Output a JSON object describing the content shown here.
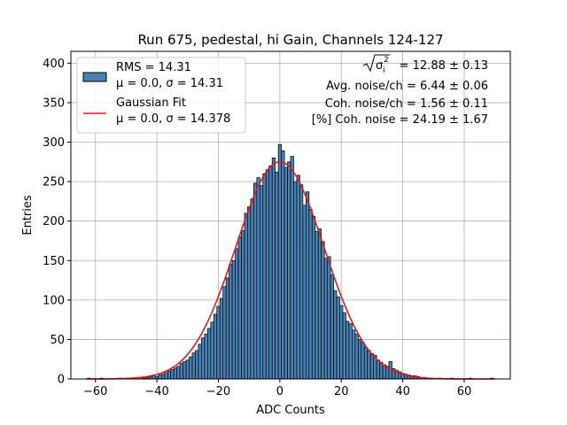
{
  "chart_data": {
    "type": "bar",
    "title": "Run 675, pedestal, hi Gain, Channels 124-127",
    "xlabel": "ADC Counts",
    "ylabel": "Entries",
    "xlim": [
      -68,
      75
    ],
    "ylim": [
      0,
      415
    ],
    "xticks": [
      -60,
      -40,
      -20,
      0,
      20,
      40,
      60
    ],
    "yticks": [
      0,
      50,
      100,
      150,
      200,
      250,
      300,
      350,
      400
    ],
    "grid": true,
    "legend_placement": "top-left",
    "bar_color": "#4682b4",
    "fit_color": "#e41a1c",
    "bins": [
      {
        "x": -62,
        "y": 1
      },
      {
        "x": -58,
        "y": 1
      },
      {
        "x": -52,
        "y": 1
      },
      {
        "x": -50,
        "y": 1
      },
      {
        "x": -47,
        "y": 1
      },
      {
        "x": -45,
        "y": 2
      },
      {
        "x": -44,
        "y": 1
      },
      {
        "x": -43,
        "y": 2
      },
      {
        "x": -42,
        "y": 3
      },
      {
        "x": -41,
        "y": 4
      },
      {
        "x": -40,
        "y": 3
      },
      {
        "x": -39,
        "y": 5
      },
      {
        "x": -38,
        "y": 6
      },
      {
        "x": -37,
        "y": 8
      },
      {
        "x": -36,
        "y": 10
      },
      {
        "x": -35,
        "y": 12
      },
      {
        "x": -34,
        "y": 14
      },
      {
        "x": -33,
        "y": 16
      },
      {
        "x": -32,
        "y": 20
      },
      {
        "x": -31,
        "y": 22
      },
      {
        "x": -30,
        "y": 24
      },
      {
        "x": -29,
        "y": 28
      },
      {
        "x": -28,
        "y": 33
      },
      {
        "x": -27,
        "y": 36
      },
      {
        "x": -26,
        "y": 44
      },
      {
        "x": -25,
        "y": 52
      },
      {
        "x": -24,
        "y": 57
      },
      {
        "x": -23,
        "y": 64
      },
      {
        "x": -22,
        "y": 72
      },
      {
        "x": -21,
        "y": 82
      },
      {
        "x": -20,
        "y": 92
      },
      {
        "x": -19,
        "y": 102
      },
      {
        "x": -18,
        "y": 117
      },
      {
        "x": -17,
        "y": 128
      },
      {
        "x": -16,
        "y": 145
      },
      {
        "x": -15,
        "y": 150
      },
      {
        "x": -14,
        "y": 165
      },
      {
        "x": -13,
        "y": 180
      },
      {
        "x": -12,
        "y": 188
      },
      {
        "x": -11,
        "y": 210
      },
      {
        "x": -10,
        "y": 218
      },
      {
        "x": -9,
        "y": 228
      },
      {
        "x": -8,
        "y": 248
      },
      {
        "x": -7,
        "y": 255
      },
      {
        "x": -6,
        "y": 245
      },
      {
        "x": -5,
        "y": 260
      },
      {
        "x": -4,
        "y": 265
      },
      {
        "x": -3,
        "y": 270
      },
      {
        "x": -2,
        "y": 280
      },
      {
        "x": -1,
        "y": 262
      },
      {
        "x": 0,
        "y": 297
      },
      {
        "x": 1,
        "y": 289
      },
      {
        "x": 2,
        "y": 268
      },
      {
        "x": 3,
        "y": 275
      },
      {
        "x": 4,
        "y": 282
      },
      {
        "x": 5,
        "y": 250
      },
      {
        "x": 6,
        "y": 258
      },
      {
        "x": 7,
        "y": 246
      },
      {
        "x": 8,
        "y": 220
      },
      {
        "x": 9,
        "y": 237
      },
      {
        "x": 10,
        "y": 215
      },
      {
        "x": 11,
        "y": 206
      },
      {
        "x": 12,
        "y": 187
      },
      {
        "x": 13,
        "y": 190
      },
      {
        "x": 14,
        "y": 174
      },
      {
        "x": 15,
        "y": 153
      },
      {
        "x": 16,
        "y": 155
      },
      {
        "x": 17,
        "y": 132
      },
      {
        "x": 18,
        "y": 112
      },
      {
        "x": 19,
        "y": 104
      },
      {
        "x": 20,
        "y": 93
      },
      {
        "x": 21,
        "y": 84
      },
      {
        "x": 22,
        "y": 73
      },
      {
        "x": 23,
        "y": 70
      },
      {
        "x": 24,
        "y": 62
      },
      {
        "x": 25,
        "y": 57
      },
      {
        "x": 26,
        "y": 50
      },
      {
        "x": 27,
        "y": 46
      },
      {
        "x": 28,
        "y": 40
      },
      {
        "x": 29,
        "y": 36
      },
      {
        "x": 30,
        "y": 32
      },
      {
        "x": 31,
        "y": 30
      },
      {
        "x": 32,
        "y": 24
      },
      {
        "x": 33,
        "y": 21
      },
      {
        "x": 34,
        "y": 18
      },
      {
        "x": 35,
        "y": 16
      },
      {
        "x": 36,
        "y": 22
      },
      {
        "x": 37,
        "y": 13
      },
      {
        "x": 38,
        "y": 11
      },
      {
        "x": 39,
        "y": 9
      },
      {
        "x": 40,
        "y": 7
      },
      {
        "x": 41,
        "y": 6
      },
      {
        "x": 42,
        "y": 5
      },
      {
        "x": 43,
        "y": 4
      },
      {
        "x": 44,
        "y": 4
      },
      {
        "x": 45,
        "y": 3
      },
      {
        "x": 46,
        "y": 2
      },
      {
        "x": 47,
        "y": 2
      },
      {
        "x": 49,
        "y": 1
      },
      {
        "x": 52,
        "y": 1
      },
      {
        "x": 56,
        "y": 1
      },
      {
        "x": 62,
        "y": 1
      },
      {
        "x": 69,
        "y": 1
      }
    ],
    "fit": {
      "mu": 0.0,
      "sigma": 14.378,
      "amplitude": 275,
      "x_range": [
        -63,
        70
      ]
    },
    "legend": [
      {
        "kind": "bar",
        "label_line1": "RMS = 14.31",
        "label_line2": "μ = 0.0, σ = 14.31"
      },
      {
        "kind": "line",
        "label_line1": "Gaussian Fit",
        "label_line2": "μ = 0.0, σ = 14.378"
      }
    ],
    "annotations": {
      "sigma_value": " = 12.88 ± 0.13",
      "sigma_symbol": "σ",
      "sigma_sub": "i",
      "sigma_sup": "2",
      "avg_noise": "Avg. noise/ch = 6.44 ± 0.06",
      "coh_noise": "Coh. noise/ch = 1.56 ± 0.11",
      "pct_coh_noise": "[%] Coh. noise = 24.19 ± 1.67"
    }
  }
}
